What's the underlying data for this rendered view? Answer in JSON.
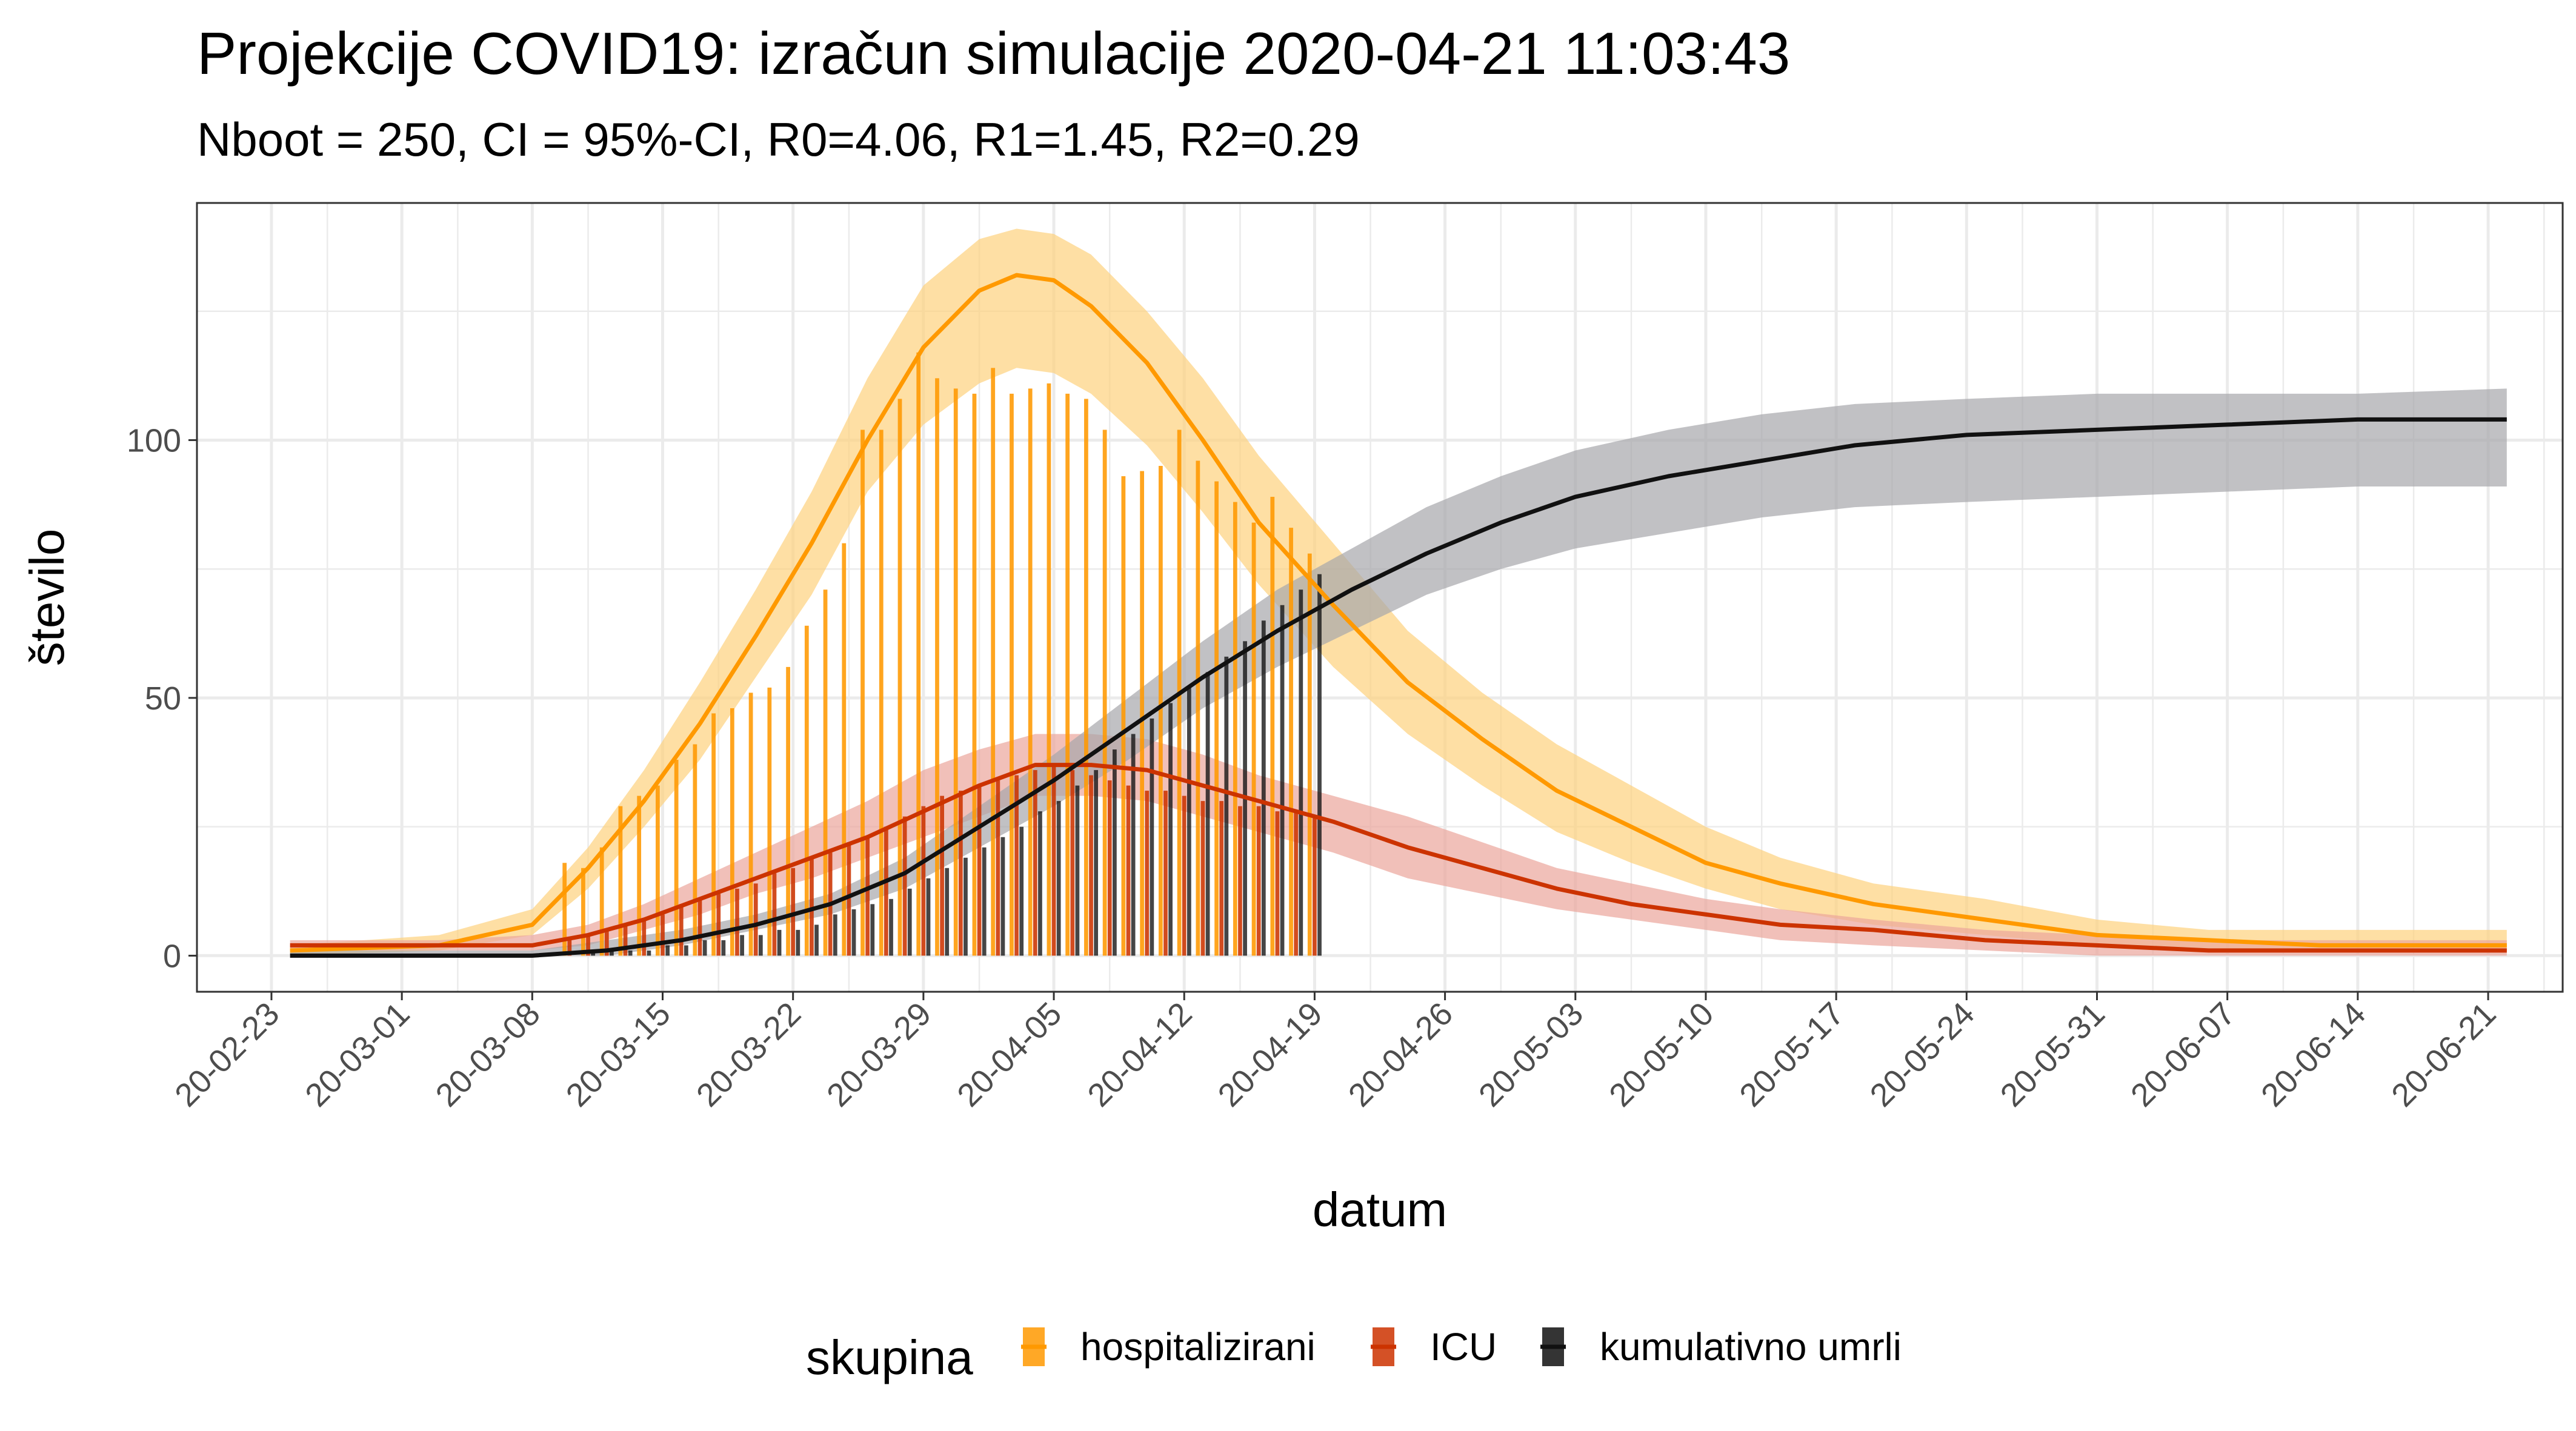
{
  "chart_data": {
    "type": "line",
    "title": "Projekcije COVID19: izračun simulacije 2020-04-21 11:03:43",
    "subtitle": "Nboot = 250, CI = 95%-CI, R0=4.06, R1=1.45, R2=0.29",
    "xlabel": "datum",
    "ylabel": "število",
    "x_range": [
      "2020-02-19",
      "2020-06-25"
    ],
    "ylim": [
      -7,
      146
    ],
    "y_ticks": [
      0,
      50,
      100
    ],
    "x_tick_dates": [
      "2020-02-23",
      "2020-03-01",
      "2020-03-08",
      "2020-03-15",
      "2020-03-22",
      "2020-03-29",
      "2020-04-05",
      "2020-04-12",
      "2020-04-19",
      "2020-04-26",
      "2020-05-03",
      "2020-05-10",
      "2020-05-17",
      "2020-05-24",
      "2020-05-31",
      "2020-06-07",
      "2020-06-14",
      "2020-06-21"
    ],
    "x_tick_labels": [
      "20-02-23",
      "20-03-01",
      "20-03-08",
      "20-03-15",
      "20-03-22",
      "20-03-29",
      "20-04-05",
      "20-04-12",
      "20-04-19",
      "20-04-26",
      "20-05-03",
      "20-05-10",
      "20-05-17",
      "20-05-24",
      "20-05-31",
      "20-06-07",
      "20-06-14",
      "20-06-21"
    ],
    "grid": true,
    "legend": {
      "title": "skupina",
      "position": "bottom"
    },
    "series": [
      {
        "name": "hospitalizirani",
        "color": "#ff9900",
        "band_color": "#fdd27d",
        "projection": {
          "x": [
            "2020-02-24",
            "2020-03-03",
            "2020-03-08",
            "2020-03-11",
            "2020-03-14",
            "2020-03-17",
            "2020-03-20",
            "2020-03-23",
            "2020-03-26",
            "2020-03-29",
            "2020-04-01",
            "2020-04-03",
            "2020-04-05",
            "2020-04-07",
            "2020-04-10",
            "2020-04-13",
            "2020-04-16",
            "2020-04-20",
            "2020-04-24",
            "2020-04-28",
            "2020-05-02",
            "2020-05-06",
            "2020-05-10",
            "2020-05-14",
            "2020-05-19",
            "2020-05-25",
            "2020-05-31",
            "2020-06-06",
            "2020-06-12",
            "2020-06-22"
          ],
          "y": [
            1,
            2,
            6,
            17,
            30,
            45,
            62,
            80,
            100,
            118,
            129,
            132,
            131,
            126,
            115,
            100,
            84,
            68,
            53,
            42,
            32,
            25,
            18,
            14,
            10,
            7,
            4,
            3,
            2,
            2
          ],
          "lower": [
            0,
            1,
            4,
            13,
            25,
            38,
            54,
            70,
            90,
            103,
            111,
            114,
            113,
            109,
            99,
            86,
            72,
            56,
            43,
            33,
            24,
            18,
            13,
            9,
            6,
            4,
            2,
            1,
            1,
            1
          ],
          "upper": [
            2,
            4,
            9,
            21,
            36,
            53,
            71,
            90,
            112,
            130,
            139,
            141,
            140,
            136,
            125,
            112,
            97,
            80,
            63,
            51,
            41,
            33,
            25,
            19,
            14,
            11,
            7,
            5,
            5,
            5
          ]
        },
        "observed": {
          "x": [
            "2020-03-10",
            "2020-03-11",
            "2020-03-12",
            "2020-03-13",
            "2020-03-14",
            "2020-03-15",
            "2020-03-16",
            "2020-03-17",
            "2020-03-18",
            "2020-03-19",
            "2020-03-20",
            "2020-03-21",
            "2020-03-22",
            "2020-03-23",
            "2020-03-24",
            "2020-03-25",
            "2020-03-26",
            "2020-03-27",
            "2020-03-28",
            "2020-03-29",
            "2020-03-30",
            "2020-03-31",
            "2020-04-01",
            "2020-04-02",
            "2020-04-03",
            "2020-04-04",
            "2020-04-05",
            "2020-04-06",
            "2020-04-07",
            "2020-04-08",
            "2020-04-09",
            "2020-04-10",
            "2020-04-11",
            "2020-04-12",
            "2020-04-13",
            "2020-04-14",
            "2020-04-15",
            "2020-04-16",
            "2020-04-17",
            "2020-04-18",
            "2020-04-19"
          ],
          "y": [
            18,
            17,
            21,
            29,
            31,
            33,
            38,
            41,
            47,
            48,
            51,
            52,
            56,
            64,
            71,
            80,
            102,
            102,
            108,
            117,
            112,
            110,
            109,
            114,
            109,
            110,
            111,
            109,
            108,
            102,
            93,
            94,
            95,
            102,
            96,
            92,
            88,
            84,
            89,
            83,
            78
          ]
        }
      },
      {
        "name": "ICU",
        "color": "#cc3300",
        "band_color": "#eba59b",
        "projection": {
          "x": [
            "2020-02-24",
            "2020-03-03",
            "2020-03-08",
            "2020-03-11",
            "2020-03-14",
            "2020-03-17",
            "2020-03-20",
            "2020-03-23",
            "2020-03-26",
            "2020-03-29",
            "2020-04-01",
            "2020-04-04",
            "2020-04-07",
            "2020-04-10",
            "2020-04-13",
            "2020-04-16",
            "2020-04-20",
            "2020-04-24",
            "2020-04-28",
            "2020-05-02",
            "2020-05-06",
            "2020-05-10",
            "2020-05-14",
            "2020-05-19",
            "2020-05-25",
            "2020-05-31",
            "2020-06-06",
            "2020-06-12",
            "2020-06-22"
          ],
          "y": [
            2,
            2,
            2,
            4,
            7,
            11,
            15,
            19,
            23,
            28,
            33,
            37,
            37,
            36,
            33,
            30,
            26,
            21,
            17,
            13,
            10,
            8,
            6,
            5,
            3,
            2,
            1,
            1,
            1
          ],
          "lower": [
            1,
            1,
            1,
            2,
            5,
            8,
            12,
            15,
            19,
            23,
            27,
            31,
            31,
            30,
            27,
            24,
            20,
            15,
            12,
            9,
            7,
            5,
            3,
            2,
            1,
            0,
            0,
            0,
            0
          ],
          "upper": [
            3,
            3,
            4,
            6,
            10,
            15,
            20,
            25,
            30,
            36,
            40,
            43,
            43,
            42,
            39,
            35,
            31,
            27,
            22,
            17,
            14,
            11,
            9,
            7,
            5,
            4,
            3,
            3,
            3
          ]
        },
        "observed": {
          "x": [
            "2020-03-10",
            "2020-03-11",
            "2020-03-12",
            "2020-03-13",
            "2020-03-14",
            "2020-03-15",
            "2020-03-16",
            "2020-03-17",
            "2020-03-18",
            "2020-03-19",
            "2020-03-20",
            "2020-03-21",
            "2020-03-22",
            "2020-03-23",
            "2020-03-24",
            "2020-03-25",
            "2020-03-26",
            "2020-03-27",
            "2020-03-28",
            "2020-03-29",
            "2020-03-30",
            "2020-03-31",
            "2020-04-01",
            "2020-04-02",
            "2020-04-03",
            "2020-04-04",
            "2020-04-05",
            "2020-04-06",
            "2020-04-07",
            "2020-04-08",
            "2020-04-09",
            "2020-04-10",
            "2020-04-11",
            "2020-04-12",
            "2020-04-13",
            "2020-04-14",
            "2020-04-15",
            "2020-04-16",
            "2020-04-17",
            "2020-04-18",
            "2020-04-19"
          ],
          "y": [
            3,
            4,
            5,
            6,
            7,
            8,
            10,
            11,
            12,
            13,
            14,
            16,
            17,
            19,
            20,
            22,
            23,
            25,
            27,
            29,
            31,
            32,
            33,
            34,
            35,
            36,
            37,
            36,
            35,
            34,
            33,
            32,
            32,
            31,
            30,
            30,
            29,
            29,
            28,
            28,
            27
          ]
        }
      },
      {
        "name": "kumulativno umrli",
        "color": "#111111",
        "band_color": "#a7a7ab",
        "projection": {
          "x": [
            "2020-02-24",
            "2020-03-08",
            "2020-03-12",
            "2020-03-16",
            "2020-03-20",
            "2020-03-24",
            "2020-03-28",
            "2020-04-01",
            "2020-04-05",
            "2020-04-09",
            "2020-04-13",
            "2020-04-17",
            "2020-04-21",
            "2020-04-25",
            "2020-04-29",
            "2020-05-03",
            "2020-05-08",
            "2020-05-13",
            "2020-05-18",
            "2020-05-24",
            "2020-05-31",
            "2020-06-07",
            "2020-06-14",
            "2020-06-22"
          ],
          "y": [
            0,
            0,
            1,
            3,
            6,
            10,
            16,
            25,
            34,
            44,
            54,
            63,
            71,
            78,
            84,
            89,
            93,
            96,
            99,
            101,
            102,
            103,
            104,
            104
          ],
          "lower": [
            0,
            0,
            0,
            2,
            5,
            8,
            13,
            21,
            29,
            38,
            48,
            56,
            63,
            70,
            75,
            79,
            82,
            85,
            87,
            88,
            89,
            90,
            91,
            91
          ],
          "upper": [
            1,
            1,
            3,
            5,
            8,
            12,
            19,
            29,
            39,
            50,
            61,
            71,
            79,
            87,
            93,
            98,
            102,
            105,
            107,
            108,
            109,
            109,
            109,
            110
          ]
        },
        "observed": {
          "x": [
            "2020-03-10",
            "2020-03-11",
            "2020-03-12",
            "2020-03-13",
            "2020-03-14",
            "2020-03-15",
            "2020-03-16",
            "2020-03-17",
            "2020-03-18",
            "2020-03-19",
            "2020-03-20",
            "2020-03-21",
            "2020-03-22",
            "2020-03-23",
            "2020-03-24",
            "2020-03-25",
            "2020-03-26",
            "2020-03-27",
            "2020-03-28",
            "2020-03-29",
            "2020-03-30",
            "2020-03-31",
            "2020-04-01",
            "2020-04-02",
            "2020-04-03",
            "2020-04-04",
            "2020-04-05",
            "2020-04-06",
            "2020-04-07",
            "2020-04-08",
            "2020-04-09",
            "2020-04-10",
            "2020-04-11",
            "2020-04-12",
            "2020-04-13",
            "2020-04-14",
            "2020-04-15",
            "2020-04-16",
            "2020-04-17",
            "2020-04-18",
            "2020-04-19"
          ],
          "y": [
            0,
            1,
            1,
            1,
            1,
            2,
            2,
            3,
            3,
            4,
            4,
            5,
            5,
            6,
            8,
            9,
            10,
            11,
            13,
            15,
            17,
            19,
            21,
            23,
            25,
            28,
            30,
            33,
            36,
            40,
            43,
            46,
            49,
            52,
            55,
            58,
            61,
            65,
            68,
            71,
            74
          ]
        }
      }
    ]
  }
}
